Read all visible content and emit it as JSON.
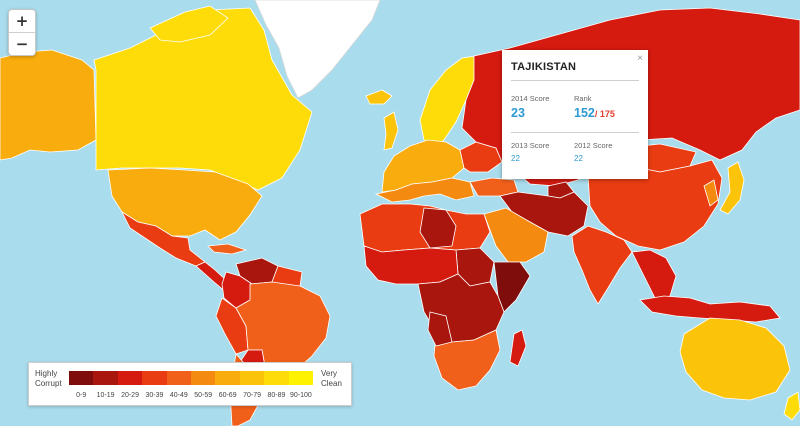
{
  "map": {
    "zoom_in_label": "+",
    "zoom_out_label": "−",
    "scale_colors": [
      "#7e0d0c",
      "#a9160e",
      "#d51a10",
      "#ea3c12",
      "#f0601a",
      "#f58a11",
      "#f8ac0d",
      "#fbc40a",
      "#fddc0a",
      "#fef200"
    ],
    "land_fill": "#e8b300",
    "ocean": "#a9dcec",
    "greenland": "#ffffff"
  },
  "popup": {
    "country": "TAJIKISTAN",
    "close_label": "×",
    "score_2014_label": "2014 Score",
    "score_2014": "23",
    "rank_label": "Rank",
    "rank": "152",
    "rank_total": "/ 175",
    "score_2013_label": "2013 Score",
    "score_2013": "22",
    "score_2012_label": "2012 Score",
    "score_2012": "22"
  },
  "legend": {
    "low_label_1": "Highly",
    "low_label_2": "Corrupt",
    "high_label_1": "Very",
    "high_label_2": "Clean",
    "ticks": [
      "0-9",
      "10-19",
      "20-29",
      "30-39",
      "40-49",
      "50-59",
      "60-69",
      "70-79",
      "80-89",
      "90-100"
    ]
  }
}
